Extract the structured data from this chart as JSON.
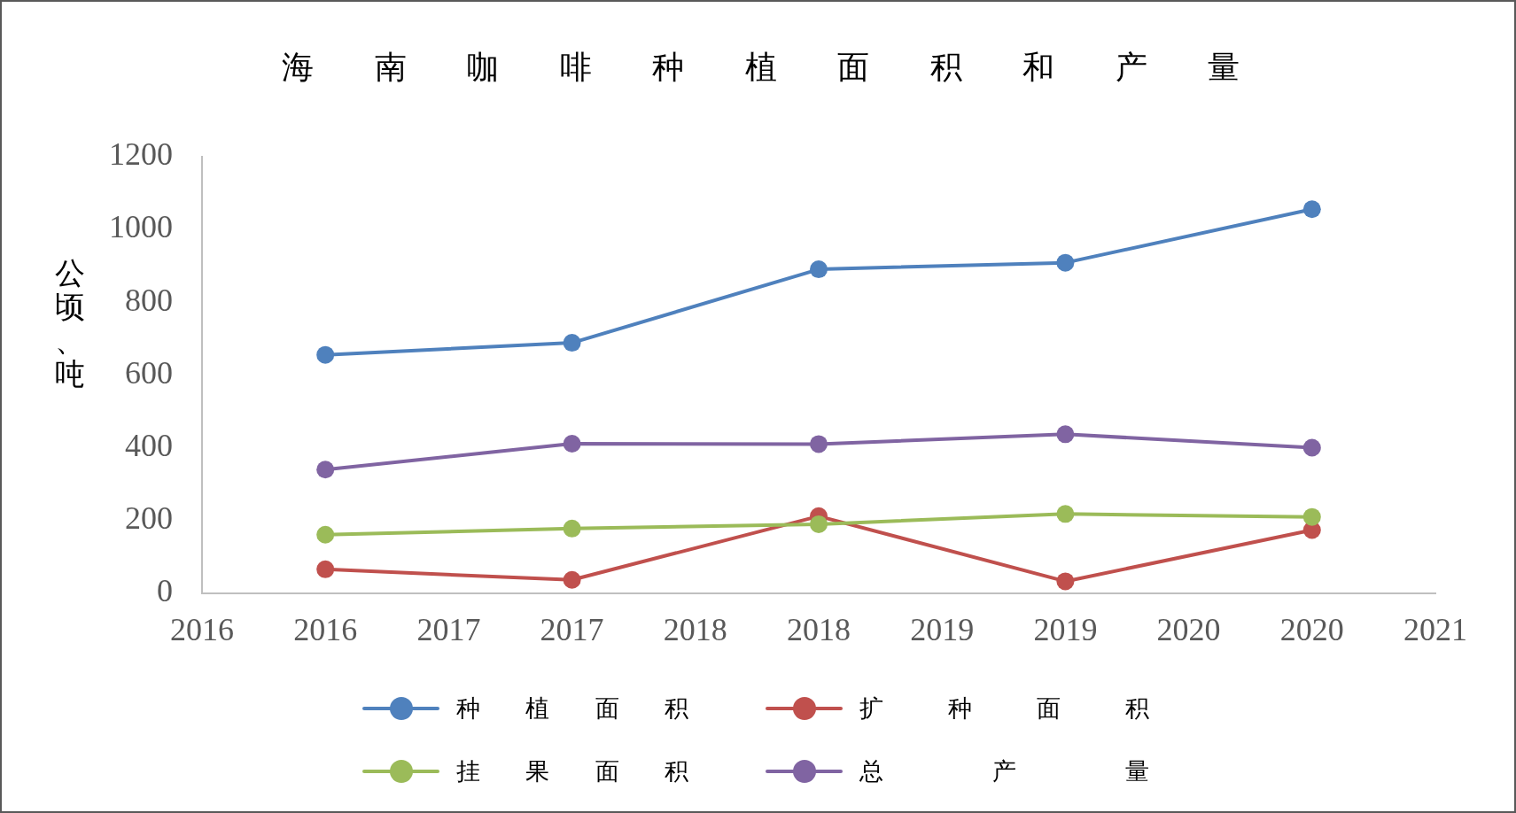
{
  "chart_data": {
    "type": "line",
    "title": "海南咖啡种植面积和产量",
    "ylabel": "公顷、吨",
    "x": [
      2016,
      2017,
      2018,
      2019,
      2020
    ],
    "series": [
      {
        "name": "种植面积",
        "color": "#4f81bd",
        "values": [
          655,
          688,
          890,
          908,
          1055
        ]
      },
      {
        "name": "扩种面积",
        "color": "#c0504d",
        "values": [
          66,
          37,
          212,
          33,
          174
        ]
      },
      {
        "name": "挂果面积",
        "color": "#9bbb59",
        "values": [
          161,
          178,
          190,
          218,
          210
        ]
      },
      {
        "name": "总产量",
        "color": "#8064a2",
        "values": [
          340,
          411,
          410,
          437,
          400
        ]
      }
    ],
    "xlim": [
      2015.5,
      2020.5
    ],
    "xticks": [
      {
        "value": 2015.5,
        "label": "2016"
      },
      2016,
      {
        "value": 2016.5,
        "label": "2017"
      },
      2017,
      {
        "value": 2017.5,
        "label": "2018"
      },
      2018,
      {
        "value": 2018.5,
        "label": "2019"
      },
      2019,
      {
        "value": 2019.5,
        "label": "2020"
      },
      2020,
      {
        "value": 2020.5,
        "label": "2021"
      }
    ],
    "ylim": [
      0,
      1200
    ],
    "yticks": [
      0,
      200,
      400,
      600,
      800,
      1000,
      1200
    ],
    "legend": "bottom",
    "marker": "circle"
  }
}
